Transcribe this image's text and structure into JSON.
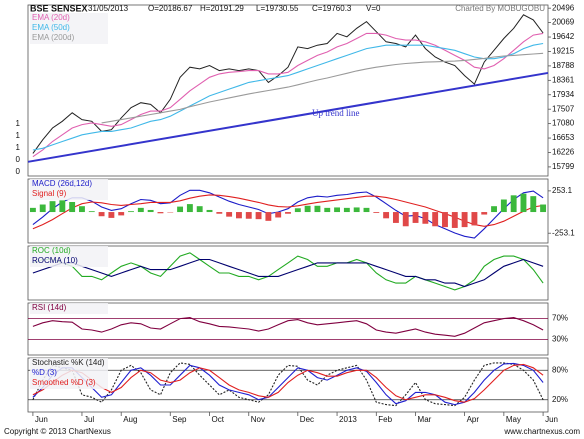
{
  "chart_data": [
    {
      "type": "line",
      "title": "BSE SENSEX",
      "date": "31/05/2013",
      "quotes": [
        "O=20186.67",
        "H=20191.29",
        "L=19730.55",
        "C=19760.3",
        "V=0"
      ],
      "credit": "Charted By MOBUGOBU",
      "left_labels": [
        "1",
        "1",
        "1",
        "0",
        "0"
      ],
      "ylim": [
        15530,
        20590
      ],
      "yticks": [
        20496,
        20069,
        19642,
        19215,
        18788,
        18361,
        17934,
        17507,
        17080,
        16653,
        16226,
        15799
      ],
      "grid": false,
      "trend_line": {
        "label": "Up trend line",
        "start": 15950,
        "end": 18580,
        "color": "#3434cc"
      },
      "series": [
        {
          "color": "#222222",
          "values": [
            16200,
            16600,
            16950,
            17150,
            17400,
            17200,
            17150,
            16850,
            16900,
            17250,
            17550,
            17700,
            17650,
            17400,
            17800,
            18450,
            18750,
            18700,
            18800,
            18650,
            18700,
            18650,
            18700,
            18650,
            18300,
            18500,
            18750,
            19350,
            19300,
            19400,
            19450,
            19750,
            19650,
            19900,
            20100,
            19800,
            19500,
            19450,
            19350,
            19700,
            19300,
            19050,
            18900,
            18800,
            18500,
            18250,
            18900,
            19250,
            19600,
            19900,
            20300,
            20150,
            19760
          ]
        },
        {
          "name": "EMA (20d)",
          "color": "#e060b0",
          "values": [
            16100,
            16300,
            16550,
            16750,
            16950,
            17050,
            17100,
            17050,
            17000,
            17050,
            17200,
            17350,
            17450,
            17450,
            17550,
            17800,
            18050,
            18250,
            18450,
            18550,
            18600,
            18620,
            18650,
            18650,
            18550,
            18550,
            18600,
            18800,
            18950,
            19100,
            19200,
            19350,
            19450,
            19600,
            19750,
            19750,
            19700,
            19600,
            19550,
            19550,
            19500,
            19400,
            19250,
            19100,
            18950,
            18750,
            18700,
            18800,
            19000,
            19250,
            19500,
            19700,
            19750
          ]
        },
        {
          "name": "EMA (50d)",
          "color": "#40b8e8",
          "values": [
            16300,
            16350,
            16450,
            16550,
            16650,
            16750,
            16800,
            16850,
            16850,
            16900,
            16950,
            17050,
            17150,
            17200,
            17300,
            17450,
            17600,
            17750,
            17900,
            18000,
            18100,
            18200,
            18300,
            18350,
            18400,
            18450,
            18500,
            18600,
            18700,
            18800,
            18900,
            19000,
            19100,
            19200,
            19300,
            19350,
            19400,
            19400,
            19400,
            19400,
            19400,
            19350,
            19300,
            19250,
            19150,
            19050,
            19000,
            19000,
            19050,
            19150,
            19300,
            19400,
            19450
          ]
        },
        {
          "name": "EMA (200d)",
          "color": "#9a9a9a",
          "values": [
            null,
            null,
            null,
            null,
            null,
            null,
            null,
            17100,
            17150,
            17200,
            17250,
            17300,
            17350,
            17400,
            17450,
            17500,
            17580,
            17650,
            17720,
            17780,
            17840,
            17900,
            17960,
            18010,
            18060,
            18110,
            18160,
            18230,
            18300,
            18370,
            18430,
            18500,
            18570,
            18640,
            18700,
            18750,
            18790,
            18830,
            18860,
            18880,
            18900,
            18910,
            18920,
            18930,
            18950,
            18980,
            19010,
            19050,
            19080,
            19100,
            19120,
            19140,
            19160
          ]
        }
      ]
    },
    {
      "type": "line",
      "ylim": [
        -370,
        395
      ],
      "yticks": [
        253.1,
        -253.1
      ],
      "grid": false,
      "series": [
        {
          "name": "MACD (26d,12d)",
          "color": "#1c1cc8",
          "values": [
            -150,
            -60,
            40,
            120,
            170,
            170,
            130,
            60,
            20,
            40,
            100,
            150,
            140,
            100,
            110,
            200,
            260,
            260,
            230,
            180,
            130,
            90,
            60,
            30,
            -20,
            0,
            40,
            120,
            170,
            190,
            180,
            200,
            210,
            230,
            240,
            180,
            100,
            20,
            -50,
            -40,
            -80,
            -150,
            -200,
            -250,
            -290,
            -310,
            -200,
            -80,
            40,
            150,
            230,
            250,
            170
          ]
        },
        {
          "name": "Signal (9)",
          "color": "#e02020",
          "values": [
            -200,
            -150,
            -90,
            -20,
            50,
            100,
            120,
            110,
            90,
            80,
            90,
            100,
            115,
            115,
            115,
            135,
            165,
            190,
            205,
            200,
            185,
            165,
            140,
            115,
            85,
            65,
            60,
            75,
            95,
            115,
            130,
            145,
            160,
            175,
            190,
            190,
            175,
            150,
            120,
            90,
            60,
            20,
            -20,
            -60,
            -110,
            -150,
            -170,
            -150,
            -110,
            -50,
            10,
            60,
            80
          ]
        },
        {
          "kind": "bar",
          "colors": [
            "#3cb83c",
            "#e04848"
          ],
          "values": [
            50,
            90,
            130,
            140,
            120,
            70,
            10,
            -50,
            -70,
            -40,
            10,
            50,
            25,
            -15,
            -5,
            65,
            95,
            70,
            25,
            -20,
            -55,
            -75,
            -80,
            -85,
            -105,
            -65,
            -20,
            45,
            75,
            75,
            50,
            55,
            50,
            55,
            50,
            -10,
            -75,
            -130,
            -170,
            -130,
            -140,
            -170,
            -180,
            -190,
            -180,
            -160,
            -30,
            70,
            150,
            200,
            220,
            190,
            90
          ]
        }
      ]
    },
    {
      "type": "line",
      "ylim": [
        -8,
        8
      ],
      "grid": false,
      "series": [
        {
          "name": "ROC (10d)",
          "color": "#22aa22",
          "values": [
            3,
            4,
            4,
            3,
            2,
            -1,
            -1,
            -2,
            0,
            2,
            3,
            2,
            0,
            -1,
            2,
            5,
            6,
            4,
            2,
            0,
            0,
            -1,
            -1,
            -2,
            -1,
            1,
            3,
            5,
            4,
            2,
            2,
            3,
            3,
            4,
            3,
            0,
            -2,
            -3,
            -3,
            -1,
            -2,
            -3,
            -4,
            -5,
            -4,
            -2,
            2,
            4,
            5,
            5,
            4,
            1,
            -3
          ]
        },
        {
          "name": "ROCMA (10)",
          "color": "#00006e",
          "values": [
            0,
            1,
            2,
            3,
            3,
            2,
            1,
            0,
            -1,
            0,
            1,
            2,
            1,
            1,
            1,
            2,
            3,
            4,
            4,
            3,
            2,
            1,
            0,
            -1,
            -1,
            -1,
            0,
            1,
            2,
            3,
            3,
            3,
            3,
            3,
            3,
            2,
            1,
            0,
            -1,
            -1,
            -2,
            -2,
            -3,
            -3,
            -4,
            -3,
            -2,
            0,
            2,
            3,
            4,
            3,
            2
          ]
        }
      ]
    },
    {
      "type": "line",
      "ylim": [
        0,
        100
      ],
      "yticks": [
        {
          "value": 70,
          "label": "70%"
        },
        {
          "value": 30,
          "label": "30%"
        }
      ],
      "grid": true,
      "grid_color": "#800040",
      "series": [
        {
          "name": "RSI (14d)",
          "color": "#800040",
          "values": [
            55,
            62,
            66,
            64,
            63,
            50,
            48,
            44,
            50,
            58,
            62,
            60,
            52,
            50,
            60,
            70,
            72,
            64,
            60,
            55,
            54,
            52,
            50,
            46,
            50,
            58,
            66,
            68,
            62,
            58,
            60,
            62,
            64,
            66,
            60,
            48,
            44,
            42,
            46,
            50,
            44,
            40,
            38,
            36,
            42,
            52,
            62,
            66,
            70,
            72,
            66,
            58,
            48
          ]
        }
      ]
    },
    {
      "type": "line",
      "ylim": [
        -5,
        105
      ],
      "yticks": [
        {
          "value": 80,
          "label": "80%"
        },
        {
          "value": 20,
          "label": "20%"
        }
      ],
      "grid": true,
      "grid_color": "#333333",
      "categories": [
        "Jun",
        null,
        null,
        null,
        null,
        "Jul",
        null,
        null,
        null,
        "Aug",
        null,
        null,
        null,
        null,
        "Sep",
        null,
        null,
        null,
        "Oct",
        null,
        null,
        null,
        "Nov",
        null,
        null,
        null,
        null,
        "Dec",
        null,
        null,
        null,
        "2013",
        null,
        null,
        null,
        "Feb",
        null,
        null,
        null,
        "Mar",
        null,
        null,
        null,
        null,
        "Apr",
        null,
        null,
        null,
        "May",
        null,
        null,
        null,
        "Jun"
      ],
      "copyright": "Copyright © 2013 ChartNexus",
      "website": "www.chartnexus.com",
      "series": [
        {
          "name": "Stochastic %K (14d)",
          "color": "#222222",
          "dashed": true,
          "values": [
            20,
            60,
            90,
            85,
            80,
            30,
            25,
            15,
            40,
            80,
            90,
            75,
            40,
            30,
            75,
            95,
            92,
            70,
            50,
            30,
            40,
            25,
            20,
            15,
            30,
            70,
            90,
            88,
            60,
            50,
            70,
            80,
            85,
            90,
            60,
            15,
            10,
            8,
            30,
            55,
            20,
            12,
            10,
            8,
            25,
            60,
            90,
            95,
            95,
            92,
            80,
            60,
            20
          ]
        },
        {
          "name": "%D (3)",
          "color": "#2020d0",
          "values": [
            25,
            45,
            70,
            85,
            85,
            65,
            45,
            25,
            30,
            55,
            80,
            85,
            70,
            50,
            50,
            70,
            90,
            85,
            70,
            50,
            40,
            35,
            30,
            20,
            25,
            45,
            65,
            85,
            80,
            65,
            60,
            70,
            80,
            85,
            78,
            55,
            30,
            12,
            18,
            35,
            35,
            30,
            15,
            10,
            15,
            35,
            60,
            80,
            93,
            94,
            90,
            80,
            55
          ]
        },
        {
          "name": "Smoothed %D (3)",
          "color": "#e02020",
          "values": [
            30,
            40,
            55,
            70,
            80,
            75,
            60,
            45,
            35,
            45,
            65,
            80,
            75,
            60,
            55,
            60,
            75,
            85,
            80,
            65,
            50,
            40,
            35,
            28,
            25,
            35,
            55,
            70,
            80,
            75,
            68,
            68,
            75,
            80,
            80,
            65,
            45,
            28,
            20,
            25,
            30,
            30,
            25,
            18,
            15,
            22,
            40,
            60,
            80,
            90,
            92,
            85,
            70
          ]
        }
      ]
    }
  ]
}
